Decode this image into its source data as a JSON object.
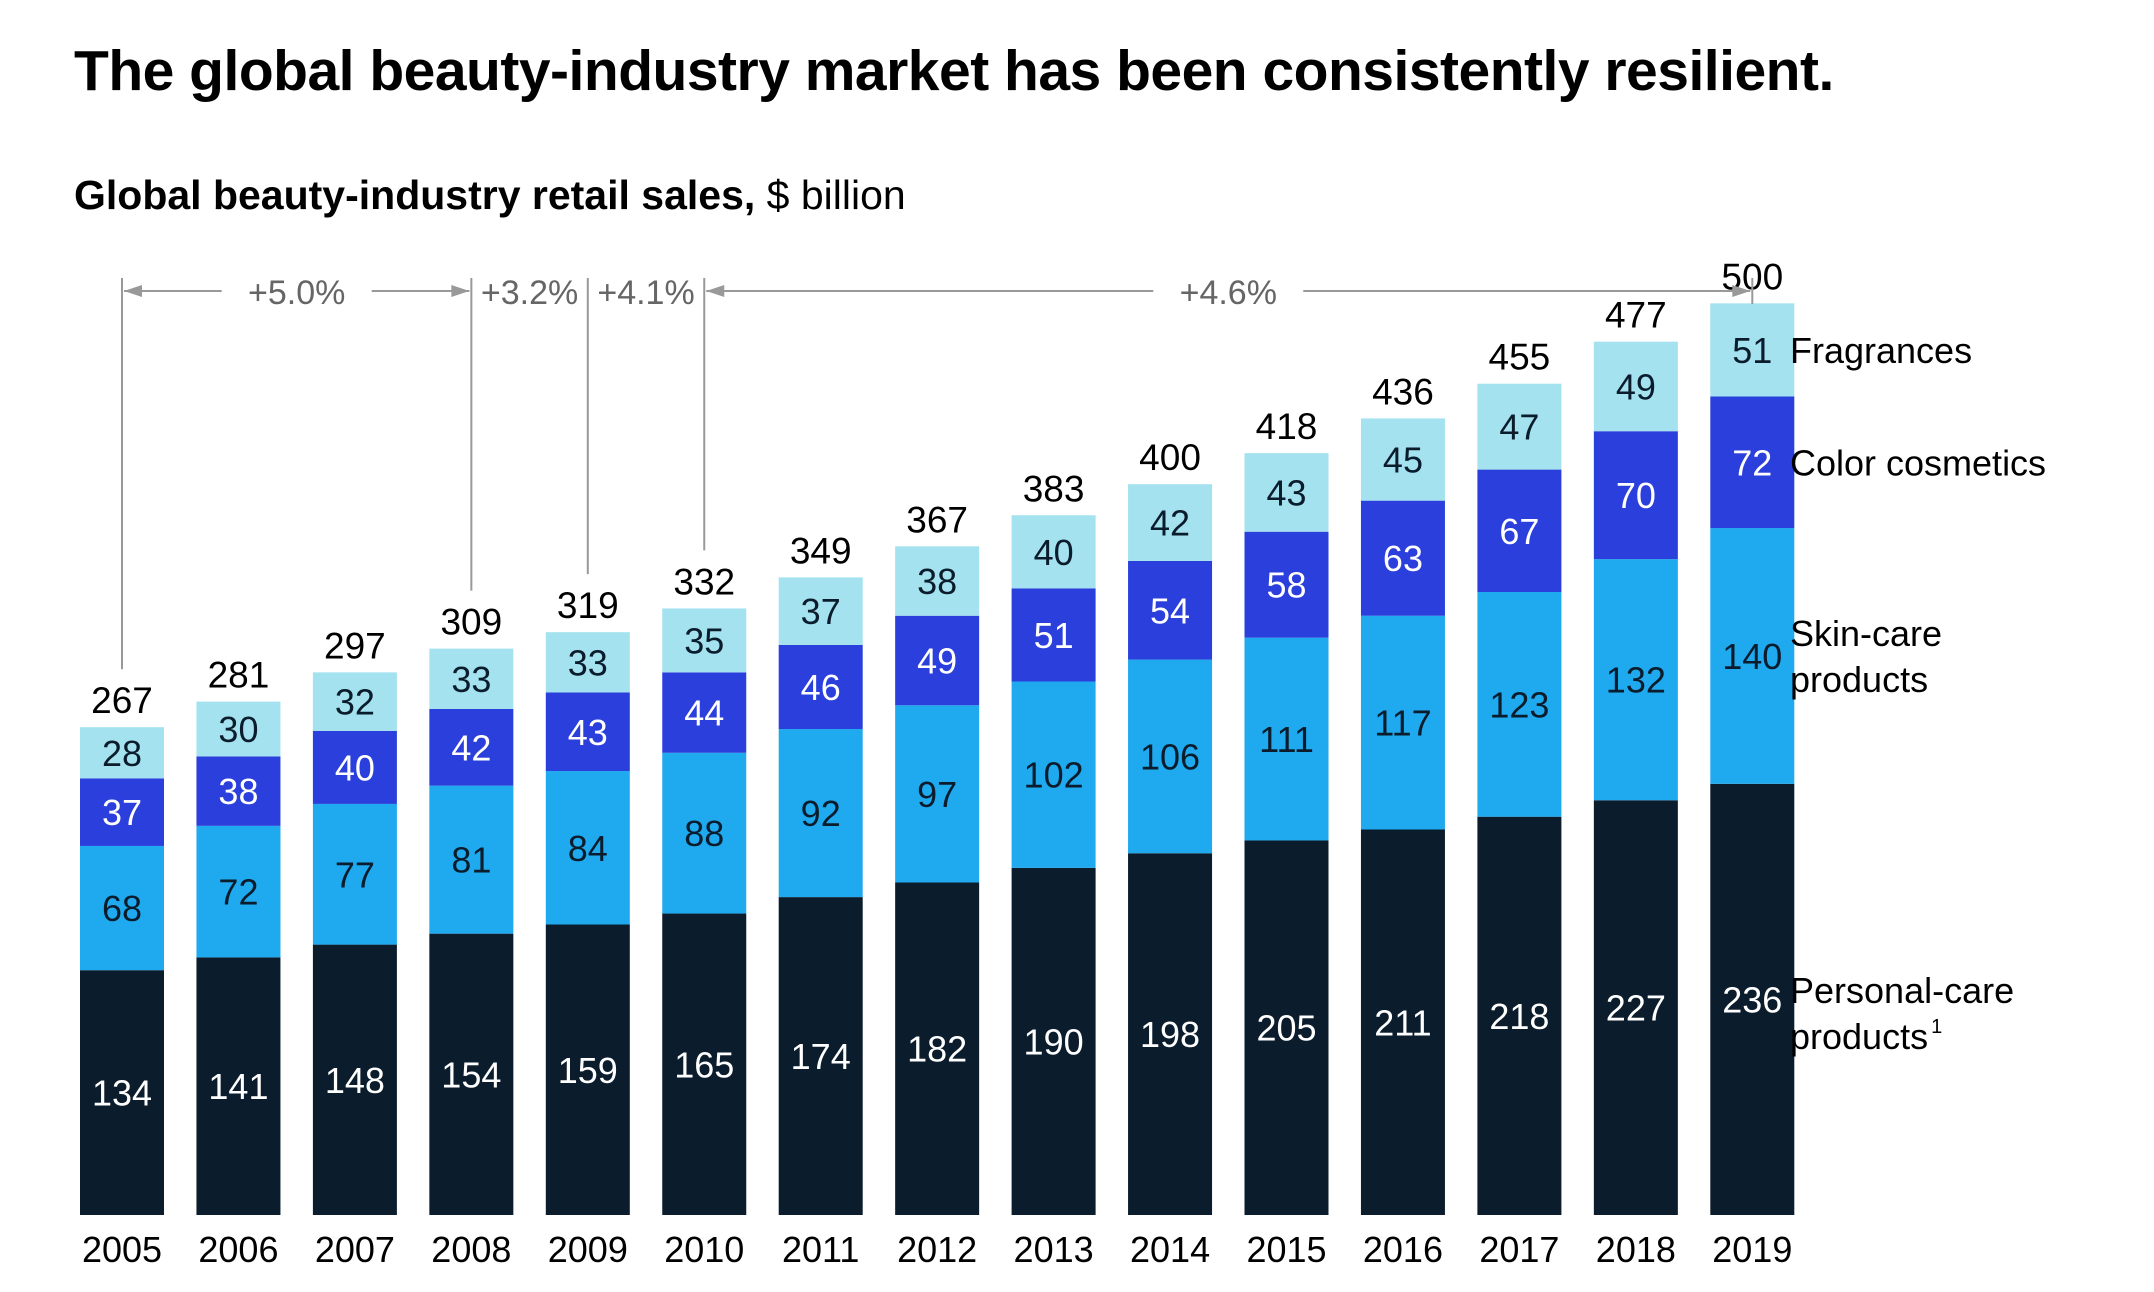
{
  "headline": "The global beauty-industry market has been consistently resilient.",
  "subtitle": {
    "bold": "Global beauty-industry retail sales,",
    "unit": "$ billion"
  },
  "colors": {
    "personal_care": "#0b1c2c",
    "skin_care": "#1fa9ee",
    "color_cosmetics": "#2a3fdc",
    "fragrances": "#a3e2ee",
    "annotation": "#999999"
  },
  "chart_data": {
    "type": "bar",
    "stacked": true,
    "categories": [
      "2005",
      "2006",
      "2007",
      "2008",
      "2009",
      "2010",
      "2011",
      "2012",
      "2013",
      "2014",
      "2015",
      "2016",
      "2017",
      "2018",
      "2019"
    ],
    "series": [
      {
        "name": "Personal-care products",
        "values": [
          134,
          141,
          148,
          154,
          159,
          165,
          174,
          182,
          190,
          198,
          205,
          211,
          218,
          227,
          236
        ]
      },
      {
        "name": "Skin-care products",
        "values": [
          68,
          72,
          77,
          81,
          84,
          88,
          92,
          97,
          102,
          106,
          111,
          117,
          123,
          132,
          140
        ]
      },
      {
        "name": "Color cosmetics",
        "values": [
          37,
          38,
          40,
          42,
          43,
          44,
          46,
          49,
          51,
          54,
          58,
          63,
          67,
          70,
          72
        ]
      },
      {
        "name": "Fragrances",
        "values": [
          28,
          30,
          32,
          33,
          33,
          35,
          37,
          38,
          40,
          42,
          43,
          45,
          47,
          49,
          51
        ]
      }
    ],
    "totals": [
      267,
      281,
      297,
      309,
      319,
      332,
      349,
      367,
      383,
      400,
      418,
      436,
      455,
      477,
      500
    ],
    "legend": [
      {
        "lines": [
          "Fragrances"
        ],
        "sup": ""
      },
      {
        "lines": [
          "Color cosmetics"
        ],
        "sup": ""
      },
      {
        "lines": [
          "Skin-care",
          "products"
        ],
        "sup": ""
      },
      {
        "lines": [
          "Personal-care",
          "products"
        ],
        "sup": "1"
      }
    ],
    "growth_annotations": [
      {
        "label": "+5.0%",
        "from": "2005",
        "to": "2008"
      },
      {
        "label": "+3.2%",
        "from": "2008",
        "to": "2009"
      },
      {
        "label": "+4.1%",
        "from": "2009",
        "to": "2010"
      },
      {
        "label": "+4.6%",
        "from": "2010",
        "to": "2019"
      }
    ],
    "legend_placement": "right",
    "grid": false
  }
}
